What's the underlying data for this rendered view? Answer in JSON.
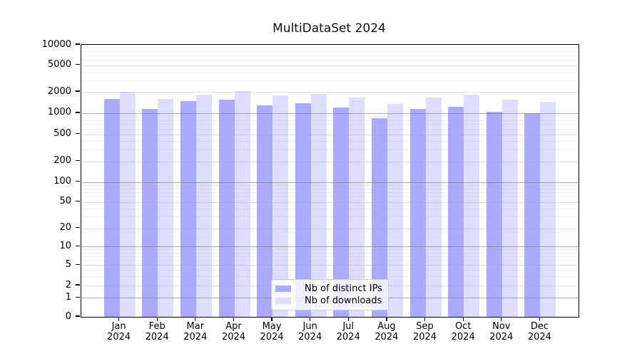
{
  "title": "MultiDataSet 2024",
  "chart_data": {
    "type": "bar",
    "title": "MultiDataSet 2024",
    "categories": [
      "Jan 2024",
      "Feb 2024",
      "Mar 2024",
      "Apr 2024",
      "May 2024",
      "Jun 2024",
      "Jul 2024",
      "Aug 2024",
      "Sep 2024",
      "Oct 2024",
      "Nov 2024",
      "Dec 2024"
    ],
    "series": [
      {
        "name": "Nb of distinct IPs",
        "color": "#aaaaff",
        "values": [
          1600,
          1150,
          1500,
          1550,
          1280,
          1380,
          1190,
          850,
          1140,
          1240,
          1040,
          1000
        ]
      },
      {
        "name": "Nb of downloads",
        "color": "#ddddff",
        "values": [
          2000,
          1600,
          1840,
          2040,
          1780,
          1880,
          1650,
          1340,
          1660,
          1810,
          1560,
          1450
        ]
      }
    ],
    "yscale": "symlog",
    "ylim": [
      0,
      10000
    ],
    "yticks": [
      0,
      1,
      2,
      5,
      10,
      20,
      50,
      100,
      200,
      500,
      1000,
      2000,
      5000,
      10000
    ],
    "grid": "both",
    "legend_position": "lower center",
    "xlabel": "",
    "ylabel": ""
  }
}
